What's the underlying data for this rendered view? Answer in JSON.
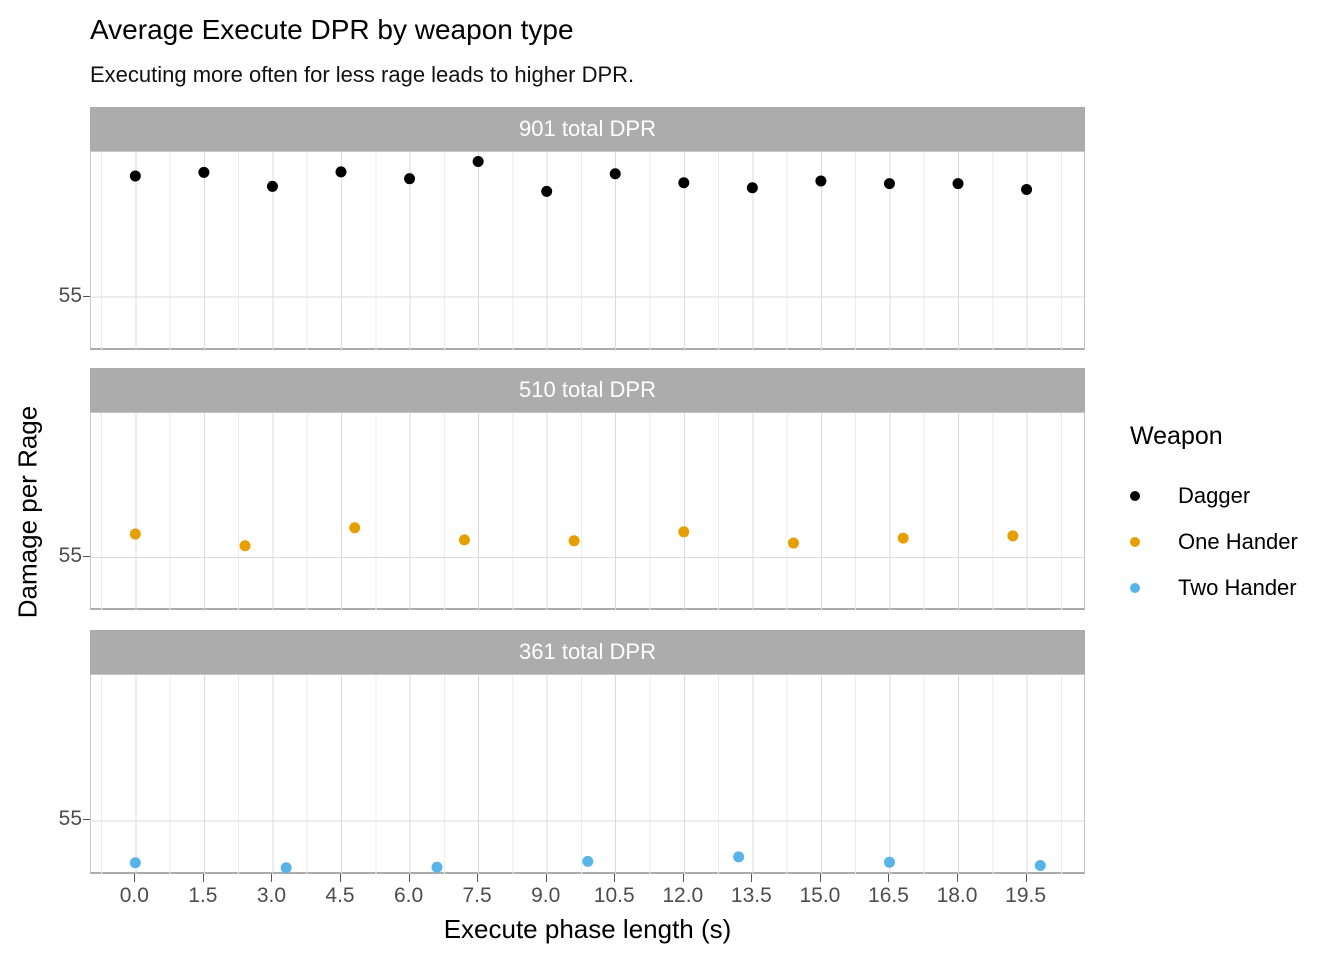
{
  "title": "Average Execute DPR by weapon type",
  "subtitle": "Executing more often for less rage leads to higher DPR.",
  "x_axis": {
    "label": "Execute phase length (s)",
    "ticks": [
      "0.0",
      "1.5",
      "3.0",
      "4.5",
      "6.0",
      "7.5",
      "9.0",
      "10.5",
      "12.0",
      "13.5",
      "15.0",
      "16.5",
      "18.0",
      "19.5"
    ]
  },
  "y_axis": {
    "label": "Damage per Rage",
    "tick": "55"
  },
  "legend": {
    "title": "Weapon",
    "items": [
      {
        "label": "Dagger",
        "color": "#000000"
      },
      {
        "label": "One Hander",
        "color": "#E69F00"
      },
      {
        "label": "Two Hander",
        "color": "#56B4E9"
      }
    ]
  },
  "colors": {
    "strip_background": "#ACACAC",
    "strip_text": "#FFFFFF",
    "grid_major": "#DBDBDB",
    "grid_minor": "#EBEBEB",
    "tick_label": "#4D4D4D",
    "dagger": "#000000",
    "one_hander": "#E69F00",
    "two_hander": "#56B4E9"
  },
  "chart_data": {
    "type": "scatter",
    "title": "Average Execute DPR by weapon type",
    "subtitle": "Executing more often for less rage leads to higher DPR.",
    "xlabel": "Execute phase length (s)",
    "ylabel": "Damage per Rage",
    "x_domain": [
      -0.97,
      20.8
    ],
    "y_domain": [
      53.8,
      58.2
    ],
    "x_tick_values": [
      0,
      1.5,
      3,
      4.5,
      6,
      7.5,
      9,
      10.5,
      12,
      13.5,
      15,
      16.5,
      18,
      19.5
    ],
    "x_minor_tick_values": [
      -0.75,
      0.75,
      2.25,
      3.75,
      5.25,
      6.75,
      8.25,
      9.75,
      11.25,
      12.75,
      14.25,
      15.75,
      17.25,
      18.75,
      20.25
    ],
    "y_tick_value": 55,
    "grid": true,
    "legend_position": "right",
    "facets": [
      {
        "strip_label": "901 total DPR",
        "series": "Dagger",
        "color": "#000000",
        "x": [
          0,
          1.5,
          3,
          4.5,
          6,
          7.5,
          9,
          10.5,
          12,
          13.5,
          15,
          16.5,
          18,
          19.5
        ],
        "y": [
          57.67,
          57.75,
          57.44,
          57.76,
          57.61,
          57.99,
          57.33,
          57.72,
          57.52,
          57.41,
          57.56,
          57.5,
          57.5,
          57.37
        ]
      },
      {
        "strip_label": "510 total DPR",
        "series": "One Hander",
        "color": "#E69F00",
        "x": [
          0,
          2.4,
          4.8,
          7.2,
          9.6,
          12,
          14.4,
          16.8,
          19.2
        ],
        "y": [
          55.51,
          55.25,
          55.65,
          55.38,
          55.36,
          55.56,
          55.31,
          55.42,
          55.47
        ]
      },
      {
        "strip_label": "361 total DPR",
        "series": "Two Hander",
        "color": "#56B4E9",
        "x": [
          0,
          3.3,
          6.6,
          9.9,
          13.2,
          16.5,
          19.8
        ],
        "y": [
          54.07,
          53.96,
          53.97,
          54.1,
          54.2,
          54.08,
          54.01
        ]
      }
    ]
  }
}
